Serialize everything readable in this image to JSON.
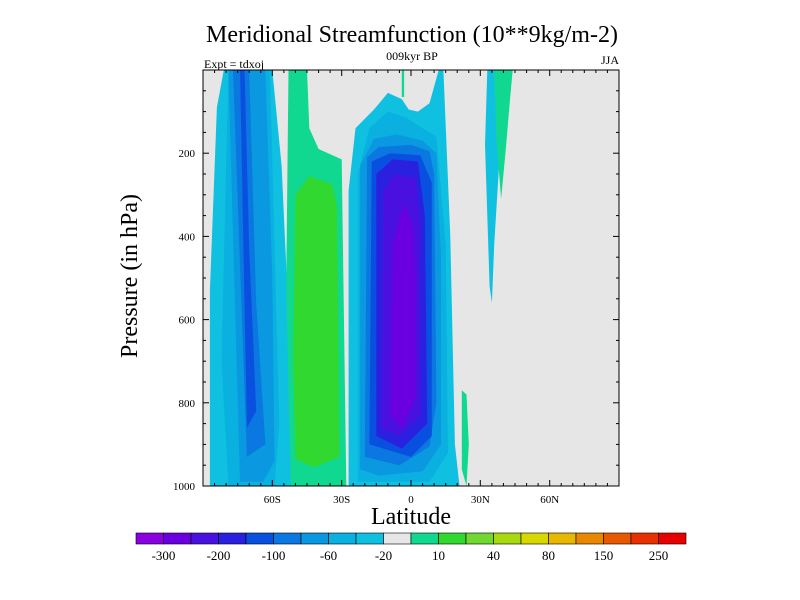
{
  "chart_data": {
    "type": "heatmap",
    "title": "Meridional Streamfunction (10**9kg/m-2)",
    "subtitle": "009kyr BP",
    "left_label": "Expt = tdxoj",
    "right_label": "JJA",
    "xlabel": "Latitude",
    "ylabel": "Pressure (in hPa)",
    "xlim": [
      -90,
      90
    ],
    "ylim": [
      1000,
      0
    ],
    "x_ticks": [
      {
        "value": -60,
        "label": "60S"
      },
      {
        "value": -30,
        "label": "30S"
      },
      {
        "value": 0,
        "label": "0"
      },
      {
        "value": 30,
        "label": "30N"
      },
      {
        "value": 60,
        "label": "60N"
      }
    ],
    "y_ticks": [
      {
        "value": 200,
        "label": "200"
      },
      {
        "value": 400,
        "label": "400"
      },
      {
        "value": 600,
        "label": "600"
      },
      {
        "value": 800,
        "label": "800"
      },
      {
        "value": 1000,
        "label": "1000"
      }
    ],
    "background_color": "#e6e6e6",
    "colorbar": {
      "colors": [
        "#8a00e0",
        "#6a00e0",
        "#4a10e0",
        "#2a20e0",
        "#0a50e0",
        "#0a78e0",
        "#0a98e0",
        "#0ab0e0",
        "#10c0e0",
        "#e6e6e6",
        "#10d890",
        "#30d830",
        "#70d830",
        "#a8d810",
        "#d8d800",
        "#e8b800",
        "#e88800",
        "#e85800",
        "#e83000",
        "#e80000"
      ],
      "labels": [
        {
          "after_index": 0,
          "label": "-300"
        },
        {
          "after_index": 2,
          "label": "-200"
        },
        {
          "after_index": 4,
          "label": "-100"
        },
        {
          "after_index": 6,
          "label": "-60"
        },
        {
          "after_index": 8,
          "label": "-20"
        },
        {
          "after_index": 10,
          "label": "10"
        },
        {
          "after_index": 12,
          "label": "40"
        },
        {
          "after_index": 14,
          "label": "80"
        },
        {
          "after_index": 16,
          "label": "150"
        },
        {
          "after_index": 18,
          "label": "250"
        }
      ]
    },
    "contour_bands": [
      {
        "name": "sh-outer-band",
        "color": "#10c0e0",
        "points": [
          [
            -87,
            530
          ],
          [
            -84,
            90
          ],
          [
            -81,
            0
          ],
          [
            -60,
            0
          ],
          [
            -56,
            230
          ],
          [
            -54,
            470
          ],
          [
            -51,
            1000
          ],
          [
            -87,
            1000
          ]
        ]
      },
      {
        "name": "sh-negative-band-2",
        "color": "#0ab0e0",
        "points": [
          [
            -82,
            700
          ],
          [
            -79,
            0
          ],
          [
            -61,
            0
          ],
          [
            -59,
            430
          ],
          [
            -57,
            850
          ],
          [
            -59,
            1000
          ],
          [
            -79,
            1000
          ]
        ]
      },
      {
        "name": "sh-negative-band-3",
        "color": "#0a98e0",
        "points": [
          [
            -79,
            0
          ],
          [
            -63,
            0
          ],
          [
            -60,
            500
          ],
          [
            -59,
            940
          ],
          [
            -64,
            990
          ],
          [
            -74,
            990
          ]
        ]
      },
      {
        "name": "sh-negative-band-4",
        "color": "#0a78e0",
        "points": [
          [
            -77,
            0
          ],
          [
            -70,
            0
          ],
          [
            -67,
            560
          ],
          [
            -63,
            900
          ],
          [
            -71,
            930
          ]
        ]
      },
      {
        "name": "sh-negative-band-5",
        "color": "#0a50e0",
        "points": [
          [
            -74,
            0
          ],
          [
            -72,
            0
          ],
          [
            -70,
            430
          ],
          [
            -67,
            820
          ],
          [
            -71,
            860
          ]
        ]
      },
      {
        "name": "sh-positive-outer",
        "color": "#10d890",
        "points": [
          [
            -53,
            0
          ],
          [
            -45,
            0
          ],
          [
            -44,
            140
          ],
          [
            -40,
            190
          ],
          [
            -30,
            215
          ],
          [
            -28,
            1000
          ],
          [
            -52,
            1000
          ],
          [
            -54,
            520
          ]
        ]
      },
      {
        "name": "sh-positive-inner",
        "color": "#30d830",
        "points": [
          [
            -50,
            300
          ],
          [
            -44,
            255
          ],
          [
            -34,
            275
          ],
          [
            -32,
            330
          ],
          [
            -31,
            930
          ],
          [
            -42,
            955
          ],
          [
            -50,
            935
          ],
          [
            -51,
            700
          ]
        ]
      },
      {
        "name": "eq-cell-band-1",
        "color": "#10c0e0",
        "points": [
          [
            -27,
            1000
          ],
          [
            -27,
            290
          ],
          [
            -24,
            140
          ],
          [
            -16,
            95
          ],
          [
            -10,
            55
          ],
          [
            -4,
            70
          ],
          [
            -1,
            95
          ],
          [
            3,
            100
          ],
          [
            8,
            80
          ],
          [
            12,
            0
          ],
          [
            14,
            0
          ],
          [
            17,
            400
          ],
          [
            19,
            900
          ],
          [
            21,
            1000
          ]
        ]
      },
      {
        "name": "eq-cell-band-2",
        "color": "#0ab0e0",
        "points": [
          [
            -23,
            990
          ],
          [
            -23,
            250
          ],
          [
            -18,
            140
          ],
          [
            -10,
            100
          ],
          [
            -2,
            115
          ],
          [
            5,
            140
          ],
          [
            11,
            160
          ],
          [
            15,
            420
          ],
          [
            16,
            920
          ],
          [
            8,
            990
          ]
        ]
      },
      {
        "name": "eq-cell-band-3",
        "color": "#0a98e0",
        "points": [
          [
            -22,
            960
          ],
          [
            -22,
            230
          ],
          [
            -16,
            165
          ],
          [
            -6,
            155
          ],
          [
            5,
            170
          ],
          [
            11,
            200
          ],
          [
            13,
            450
          ],
          [
            13,
            900
          ],
          [
            5,
            965
          ],
          [
            -14,
            975
          ]
        ]
      },
      {
        "name": "eq-cell-band-4",
        "color": "#0a78e0",
        "points": [
          [
            -20,
            930
          ],
          [
            -19,
            210
          ],
          [
            -14,
            185
          ],
          [
            0,
            180
          ],
          [
            8,
            195
          ],
          [
            10,
            250
          ],
          [
            11,
            800
          ],
          [
            8,
            905
          ],
          [
            -5,
            950
          ]
        ]
      },
      {
        "name": "eq-cell-band-5",
        "color": "#0a50e0",
        "points": [
          [
            -18,
            900
          ],
          [
            -17,
            220
          ],
          [
            -9,
            200
          ],
          [
            4,
            205
          ],
          [
            9,
            270
          ],
          [
            9,
            880
          ],
          [
            0,
            930
          ]
        ]
      },
      {
        "name": "eq-cell-band-6",
        "color": "#2a20e0",
        "points": [
          [
            -15,
            880
          ],
          [
            -15,
            250
          ],
          [
            -8,
            215
          ],
          [
            3,
            220
          ],
          [
            6,
            350
          ],
          [
            7,
            850
          ],
          [
            -4,
            910
          ]
        ]
      },
      {
        "name": "eq-cell-band-7",
        "color": "#4a10e0",
        "points": [
          [
            -13,
            860
          ],
          [
            -12,
            290
          ],
          [
            -7,
            250
          ],
          [
            2,
            260
          ],
          [
            4,
            380
          ],
          [
            4,
            830
          ],
          [
            -5,
            880
          ]
        ]
      },
      {
        "name": "eq-cell-band-8",
        "color": "#6a00e0",
        "points": [
          [
            -9,
            830
          ],
          [
            -8,
            420
          ],
          [
            -3,
            320
          ],
          [
            1,
            380
          ],
          [
            2,
            500
          ],
          [
            2,
            790
          ],
          [
            -4,
            860
          ]
        ]
      },
      {
        "name": "nh-tropical-sliver",
        "color": "#10d890",
        "points": [
          [
            22,
            770
          ],
          [
            24,
            780
          ],
          [
            25,
            900
          ],
          [
            24,
            1000
          ],
          [
            22,
            960
          ]
        ]
      },
      {
        "name": "nh-subtropical-outer",
        "color": "#10c0e0",
        "points": [
          [
            33,
            0
          ],
          [
            43,
            0
          ],
          [
            40,
            95
          ],
          [
            38,
            240
          ],
          [
            36,
            420
          ],
          [
            35,
            560
          ],
          [
            34,
            520
          ],
          [
            32,
            180
          ]
        ]
      },
      {
        "name": "nh-subtropical-inner",
        "color": "#10d890",
        "points": [
          [
            36,
            0
          ],
          [
            44,
            0
          ],
          [
            43,
            60
          ],
          [
            41,
            190
          ],
          [
            39,
            310
          ],
          [
            37,
            170
          ]
        ]
      },
      {
        "name": "eq-upper-wisp",
        "color": "#10d890",
        "points": [
          [
            -4,
            0
          ],
          [
            -3,
            0
          ],
          [
            -3,
            65
          ],
          [
            -4,
            65
          ]
        ]
      }
    ]
  }
}
